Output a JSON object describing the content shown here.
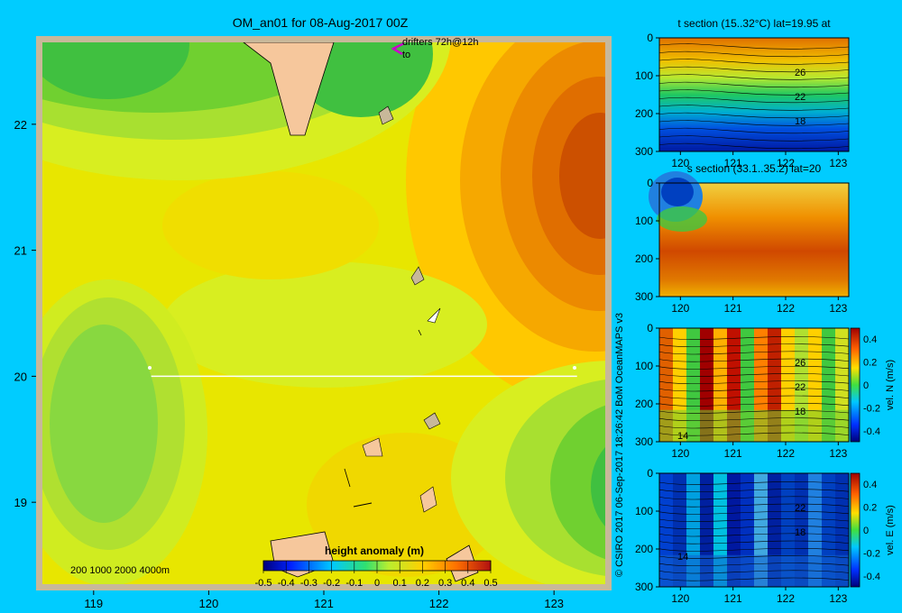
{
  "main": {
    "title": "OM_an01 for 08-Aug-2017 00Z",
    "drifters_label": "drifters 72h@12h",
    "drifters_to": "to",
    "depth_legend": "200  1000  2000  4000m",
    "colorbar_label": "height anomaly  (m)",
    "colorbar_ticks": [
      "-0.5",
      "-0.4",
      "-0.3",
      "-0.2",
      "-0.1",
      "0",
      "0.1",
      "0.2",
      "0.3",
      "0.4",
      "0.5"
    ],
    "x_ticks": [
      "119",
      "120",
      "121",
      "122",
      "123"
    ],
    "y_ticks": [
      "22",
      "21",
      "20",
      "19"
    ],
    "section_line": {
      "lat": 20,
      "lon_start": 119.5,
      "lon_end": 123.2
    },
    "colors": {
      "frame": "#c8b89a",
      "land": "#f6c79c",
      "section_line": "#ffffff",
      "drifter": "#cc00cc"
    }
  },
  "credit": "© CSIRO 2017   06-Sep-2017 18:26:42 BoM OceanMAPS v3",
  "sections": [
    {
      "title": "t section (15..32°C) lat=19.95 at",
      "x_ticks": [
        "120",
        "121",
        "122",
        "123"
      ],
      "y_ticks": [
        "0",
        "100",
        "200",
        "300"
      ],
      "contour_labels": [
        "26",
        "22",
        "18"
      ],
      "colorbar": null
    },
    {
      "title": "s section (33.1..35.2) lat=20",
      "x_ticks": [
        "120",
        "121",
        "122",
        "123"
      ],
      "y_ticks": [
        "0",
        "100",
        "200",
        "300"
      ],
      "contour_labels": [],
      "colorbar": null
    },
    {
      "title": "",
      "x_ticks": [
        "120",
        "121",
        "122",
        "123"
      ],
      "y_ticks": [
        "0",
        "100",
        "200",
        "300"
      ],
      "contour_labels": [
        "26",
        "22",
        "18",
        "14"
      ],
      "colorbar": {
        "label": "vel. N  (m/s)",
        "ticks": [
          "0.4",
          "0.2",
          "0",
          "-0.2",
          "-0.4"
        ]
      }
    },
    {
      "title": "",
      "x_ticks": [
        "120",
        "121",
        "122",
        "123"
      ],
      "y_ticks": [
        "0",
        "100",
        "200",
        "300"
      ],
      "contour_labels": [
        "22",
        "18",
        "14"
      ],
      "colorbar": {
        "label": "vel. E  (m/s)",
        "ticks": [
          "0.4",
          "0.2",
          "0",
          "-0.2",
          "-0.4"
        ]
      }
    }
  ],
  "chart_data": [
    {
      "type": "heatmap",
      "title": "OM_an01 for 08-Aug-2017 00Z",
      "variable": "height anomaly (m)",
      "xlim": [
        118.5,
        123.5
      ],
      "ylim": [
        18.3,
        22.7
      ],
      "color_range": [
        -0.5,
        0.5
      ],
      "features": [
        {
          "name": "high",
          "lon": 123.1,
          "lat": 21.6,
          "value": 0.4
        },
        {
          "name": "low",
          "lon": 119.2,
          "lat": 19.8,
          "value": 0.05
        },
        {
          "name": "low",
          "lon": 118.9,
          "lat": 22.5,
          "value": 0.0
        },
        {
          "name": "low",
          "lon": 123.3,
          "lat": 19.0,
          "value": 0.05
        }
      ]
    },
    {
      "type": "heatmap",
      "title": "t section (15..32°C) lat=19.95 at",
      "xlim": [
        119.6,
        123.2
      ],
      "ylim": [
        300,
        0
      ],
      "contour_labels": [
        26,
        22,
        18
      ]
    },
    {
      "type": "heatmap",
      "title": "s section (33.1..35.2) lat=20",
      "xlim": [
        119.6,
        123.2
      ],
      "ylim": [
        300,
        0
      ]
    },
    {
      "type": "heatmap",
      "variable": "vel. N (m/s)",
      "xlim": [
        119.6,
        123.2
      ],
      "ylim": [
        300,
        0
      ],
      "color_range": [
        -0.4,
        0.4
      ]
    },
    {
      "type": "heatmap",
      "variable": "vel. E (m/s)",
      "xlim": [
        119.6,
        123.2
      ],
      "ylim": [
        300,
        0
      ],
      "color_range": [
        -0.4,
        0.4
      ]
    }
  ]
}
